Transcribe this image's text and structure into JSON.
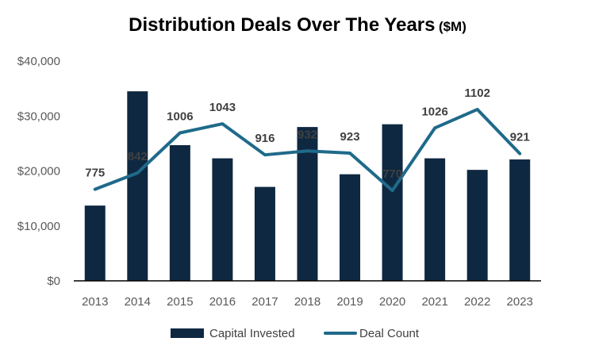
{
  "chart_data": {
    "type": "bar",
    "title": "Distribution Deals Over The Years",
    "title_unit": "($M)",
    "categories": [
      "2013",
      "2014",
      "2015",
      "2016",
      "2017",
      "2018",
      "2019",
      "2020",
      "2021",
      "2022",
      "2023"
    ],
    "y_ticks": [
      "$0",
      "$10,000",
      "$20,000",
      "$30,000",
      "$40,000"
    ],
    "ylim": [
      0,
      40000
    ],
    "grid": false,
    "legend_position": "bottom",
    "series": [
      {
        "name": "Capital Invested",
        "type": "bar",
        "axis": "primary",
        "color": "#0f2841",
        "values": [
          13700,
          34500,
          24700,
          22300,
          17100,
          28000,
          19400,
          28500,
          22300,
          20200,
          22100
        ]
      },
      {
        "name": "Deal Count",
        "type": "line",
        "axis": "secondary",
        "color": "#1f6a8a",
        "values": [
          775,
          842,
          1006,
          1043,
          916,
          932,
          923,
          770,
          1026,
          1102,
          921
        ],
        "labels": [
          "775",
          "842",
          "1006",
          "1043",
          "916",
          "932",
          "923",
          "770",
          "1026",
          "1102",
          "921"
        ]
      }
    ]
  }
}
